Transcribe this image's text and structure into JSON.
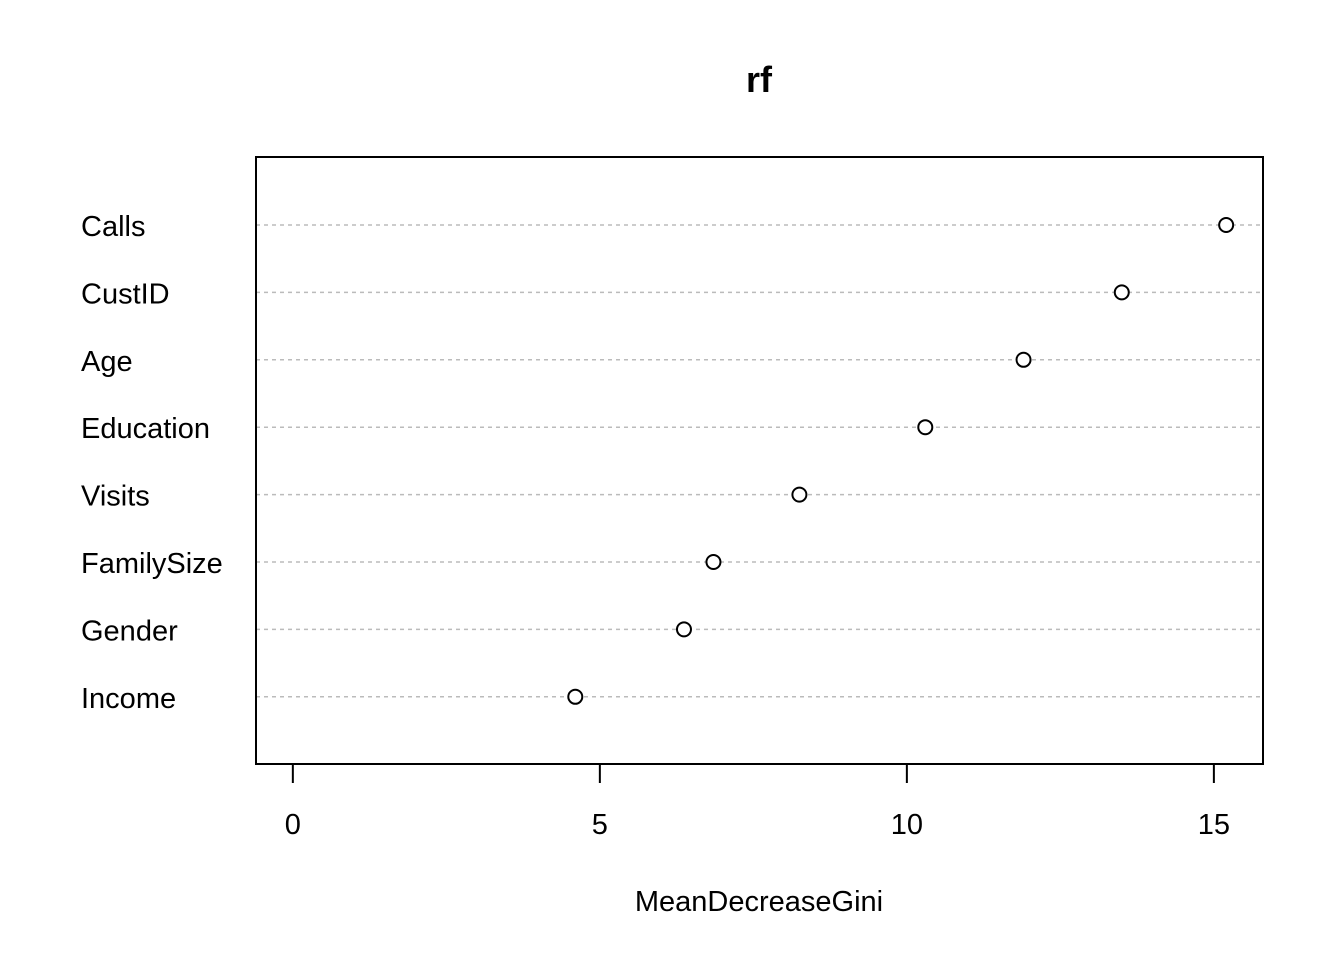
{
  "chart_data": {
    "type": "dotchart",
    "title": "rf",
    "xlabel": "MeanDecreaseGini",
    "ylabel": "",
    "xlim": [
      -0.6,
      15.8
    ],
    "xticks": [
      0,
      5,
      10,
      15
    ],
    "grid": "dashed horizontal lines per category",
    "categories": [
      "Calls",
      "CustID",
      "Age",
      "Education",
      "Visits",
      "FamilySize",
      "Gender",
      "Income"
    ],
    "values": [
      15.2,
      13.5,
      11.9,
      10.3,
      8.25,
      6.85,
      6.37,
      4.6
    ]
  }
}
